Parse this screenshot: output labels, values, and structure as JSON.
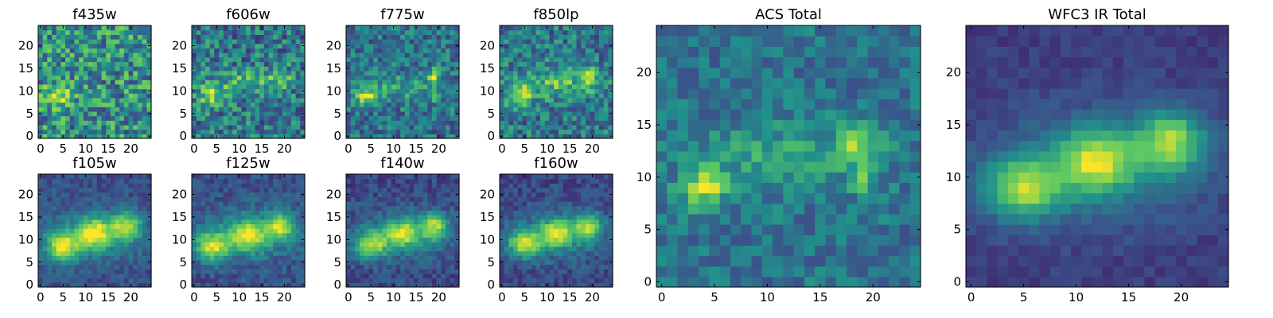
{
  "figure": {
    "colormap": "viridis",
    "colors": [
      "#440154",
      "#3b528b",
      "#21918c",
      "#5ec962",
      "#fde725"
    ]
  },
  "chart_data": [
    {
      "type": "heatmap",
      "title": "f435w",
      "xticks": [
        "0",
        "5",
        "10",
        "15",
        "20"
      ],
      "yticks": [
        "0",
        "5",
        "10",
        "15",
        "20"
      ],
      "xlim": [
        0,
        25
      ],
      "ylim": [
        0,
        25
      ],
      "sources": [
        {
          "x": 4,
          "y": 9,
          "amp": 0.35,
          "sx": 2.5,
          "sy": 1.5
        }
      ],
      "noise": 0.3,
      "background": 0.5
    },
    {
      "type": "heatmap",
      "title": "f606w",
      "xticks": [
        "0",
        "5",
        "10",
        "15",
        "20"
      ],
      "yticks": [
        "0",
        "5",
        "10",
        "15",
        "20"
      ],
      "xlim": [
        0,
        25
      ],
      "ylim": [
        0,
        25
      ],
      "sources": [
        {
          "x": 4,
          "y": 9,
          "amp": 0.4,
          "sx": 2.2,
          "sy": 1.8
        },
        {
          "x": 12,
          "y": 12,
          "amp": 0.28,
          "sx": 5,
          "sy": 1.8
        },
        {
          "x": 19,
          "y": 13,
          "amp": 0.25,
          "sx": 2,
          "sy": 1.5
        }
      ],
      "noise": 0.25,
      "background": 0.4
    },
    {
      "type": "heatmap",
      "title": "f775w",
      "xticks": [
        "0",
        "5",
        "10",
        "15",
        "20"
      ],
      "yticks": [
        "0",
        "5",
        "10",
        "15",
        "20"
      ],
      "xlim": [
        0,
        25
      ],
      "ylim": [
        0,
        25
      ],
      "sources": [
        {
          "x": 4,
          "y": 9,
          "amp": 0.45,
          "sx": 2,
          "sy": 1.5
        },
        {
          "x": 11,
          "y": 11,
          "amp": 0.2,
          "sx": 5,
          "sy": 2
        },
        {
          "x": 19,
          "y": 13,
          "amp": 0.45,
          "sx": 1,
          "sy": 1.4
        },
        {
          "x": 19,
          "y": 9,
          "amp": 0.4,
          "sx": 0.8,
          "sy": 1
        }
      ],
      "noise": 0.2,
      "background": 0.38
    },
    {
      "type": "heatmap",
      "title": "f850lp",
      "xticks": [
        "0",
        "5",
        "10",
        "15",
        "20"
      ],
      "yticks": [
        "0",
        "5",
        "10",
        "15",
        "20"
      ],
      "xlim": [
        0,
        25
      ],
      "ylim": [
        0,
        25
      ],
      "sources": [
        {
          "x": 4,
          "y": 9,
          "amp": 0.42,
          "sx": 2.2,
          "sy": 1.6
        },
        {
          "x": 12,
          "y": 12,
          "amp": 0.3,
          "sx": 6,
          "sy": 2
        },
        {
          "x": 19,
          "y": 13,
          "amp": 0.32,
          "sx": 1.5,
          "sy": 1.5
        }
      ],
      "noise": 0.22,
      "background": 0.4
    },
    {
      "type": "heatmap",
      "title": "f105w",
      "xticks": [
        "0",
        "5",
        "10",
        "15",
        "20"
      ],
      "yticks": [
        "0",
        "5",
        "10",
        "15",
        "20"
      ],
      "xlim": [
        0,
        25
      ],
      "ylim": [
        0,
        25
      ],
      "sources": [
        {
          "x": 5,
          "y": 8.5,
          "amp": 0.62,
          "sx": 2.5,
          "sy": 2.2
        },
        {
          "x": 12,
          "y": 11.5,
          "amp": 0.58,
          "sx": 2.5,
          "sy": 2.2
        },
        {
          "x": 19,
          "y": 13,
          "amp": 0.55,
          "sx": 2.2,
          "sy": 2
        },
        {
          "x": 12,
          "y": 11,
          "amp": 0.25,
          "sx": 8,
          "sy": 4
        }
      ],
      "noise": 0.09,
      "background": 0.25
    },
    {
      "type": "heatmap",
      "title": "f125w",
      "xticks": [
        "0",
        "5",
        "10",
        "15",
        "20"
      ],
      "yticks": [
        "0",
        "5",
        "10",
        "15",
        "20"
      ],
      "xlim": [
        0,
        25
      ],
      "ylim": [
        0,
        25
      ],
      "sources": [
        {
          "x": 4,
          "y": 8.5,
          "amp": 0.6,
          "sx": 2.5,
          "sy": 2.2
        },
        {
          "x": 12,
          "y": 11,
          "amp": 0.58,
          "sx": 2.5,
          "sy": 2.2
        },
        {
          "x": 19,
          "y": 13,
          "amp": 0.55,
          "sx": 2.2,
          "sy": 2
        },
        {
          "x": 12,
          "y": 11,
          "amp": 0.25,
          "sx": 8,
          "sy": 4
        }
      ],
      "noise": 0.1,
      "background": 0.25
    },
    {
      "type": "heatmap",
      "title": "f140w",
      "xticks": [
        "0",
        "5",
        "10",
        "15",
        "20"
      ],
      "yticks": [
        "0",
        "5",
        "10",
        "15",
        "20"
      ],
      "xlim": [
        0,
        25
      ],
      "ylim": [
        0,
        25
      ],
      "sources": [
        {
          "x": 5,
          "y": 9,
          "amp": 0.58,
          "sx": 2.5,
          "sy": 2
        },
        {
          "x": 12,
          "y": 11.5,
          "amp": 0.56,
          "sx": 2.5,
          "sy": 2
        },
        {
          "x": 19,
          "y": 13,
          "amp": 0.55,
          "sx": 2.2,
          "sy": 2
        },
        {
          "x": 12,
          "y": 11,
          "amp": 0.22,
          "sx": 8,
          "sy": 4
        }
      ],
      "noise": 0.1,
      "background": 0.22
    },
    {
      "type": "heatmap",
      "title": "f160w",
      "xticks": [
        "0",
        "5",
        "10",
        "15",
        "20"
      ],
      "yticks": [
        "0",
        "5",
        "10",
        "15",
        "20"
      ],
      "xlim": [
        0,
        25
      ],
      "ylim": [
        0,
        25
      ],
      "sources": [
        {
          "x": 5,
          "y": 9,
          "amp": 0.6,
          "sx": 2.5,
          "sy": 2
        },
        {
          "x": 12,
          "y": 11.5,
          "amp": 0.58,
          "sx": 2.5,
          "sy": 2
        },
        {
          "x": 19,
          "y": 13,
          "amp": 0.55,
          "sx": 2.2,
          "sy": 2
        },
        {
          "x": 12,
          "y": 11,
          "amp": 0.22,
          "sx": 8,
          "sy": 4
        }
      ],
      "noise": 0.1,
      "background": 0.22
    },
    {
      "type": "heatmap",
      "title": "ACS Total",
      "xticks": [
        "0",
        "5",
        "10",
        "15",
        "20"
      ],
      "yticks": [
        "0",
        "5",
        "10",
        "15",
        "20"
      ],
      "xlim": [
        0,
        25
      ],
      "ylim": [
        0,
        25
      ],
      "sources": [
        {
          "x": 4,
          "y": 9,
          "amp": 0.5,
          "sx": 1.5,
          "sy": 1.3
        },
        {
          "x": 12,
          "y": 12,
          "amp": 0.22,
          "sx": 6,
          "sy": 2
        },
        {
          "x": 18.5,
          "y": 13,
          "amp": 0.4,
          "sx": 1.2,
          "sy": 1.2
        },
        {
          "x": 19,
          "y": 9.5,
          "amp": 0.45,
          "sx": 0.6,
          "sy": 1
        }
      ],
      "noise": 0.14,
      "background": 0.38
    },
    {
      "type": "heatmap",
      "title": "WFC3 IR Total",
      "xticks": [
        "0",
        "5",
        "10",
        "15",
        "20"
      ],
      "yticks": [
        "0",
        "5",
        "10",
        "15",
        "20"
      ],
      "xlim": [
        0,
        25
      ],
      "ylim": [
        0,
        25
      ],
      "sources": [
        {
          "x": 5,
          "y": 9,
          "amp": 0.6,
          "sx": 2.5,
          "sy": 2
        },
        {
          "x": 12,
          "y": 11.5,
          "amp": 0.6,
          "sx": 2.5,
          "sy": 2
        },
        {
          "x": 19,
          "y": 13.5,
          "amp": 0.58,
          "sx": 2.2,
          "sy": 2
        },
        {
          "x": 12,
          "y": 11,
          "amp": 0.22,
          "sx": 8,
          "sy": 4
        }
      ],
      "noise": 0.05,
      "background": 0.18
    }
  ]
}
